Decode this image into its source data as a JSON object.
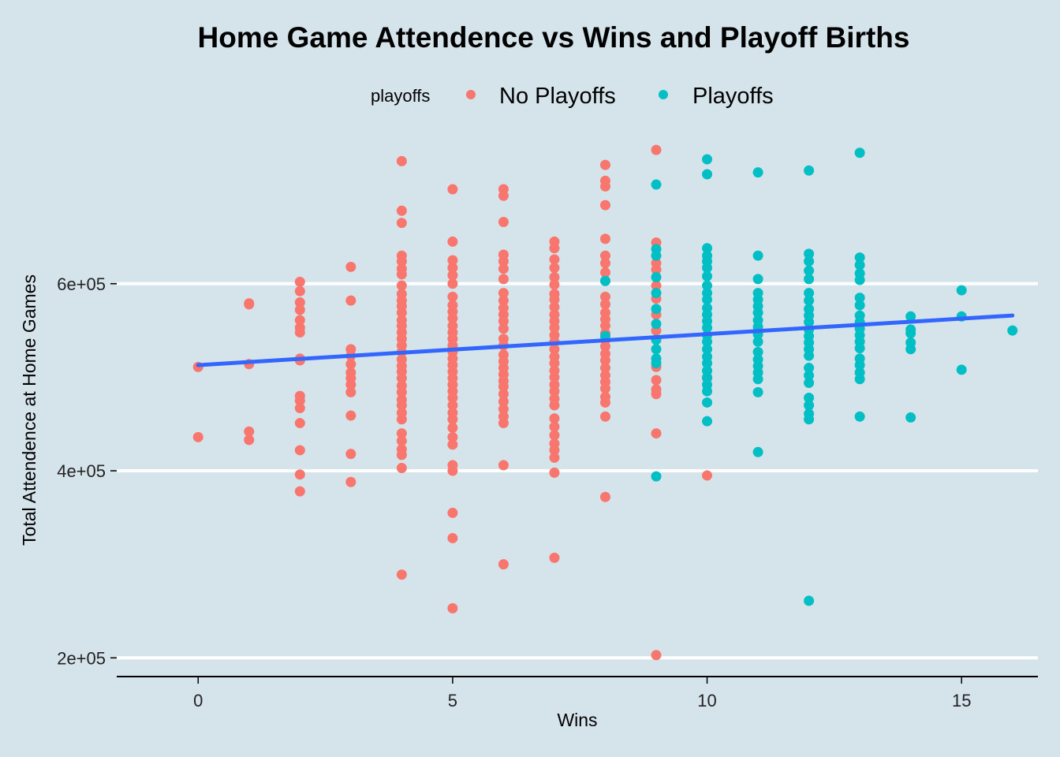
{
  "chart_data": {
    "type": "scatter",
    "title": "Home Game Attendence vs Wins and Playoff Births",
    "xlabel": "Wins",
    "ylabel": "Total Attendence at Home Games",
    "xlim": [
      -1.6,
      16.5
    ],
    "ylim": [
      180000,
      760000
    ],
    "xticks": [
      0,
      5,
      10,
      15
    ],
    "xtick_labels": [
      "0",
      "5",
      "10",
      "15"
    ],
    "yticks": [
      200000,
      400000,
      600000
    ],
    "ytick_labels": [
      "2e+05",
      "4e+05",
      "6e+05"
    ],
    "grid": "horizontal major lines only",
    "legend": {
      "title": "playoffs",
      "position": "top",
      "entries": [
        {
          "label": "No Playoffs",
          "color": "#f8766d"
        },
        {
          "label": "Playoffs",
          "color": "#00bfc4"
        }
      ]
    },
    "trend_line": {
      "color": "#3366ff",
      "x": [
        0,
        16
      ],
      "y": [
        513000,
        566000
      ]
    },
    "series": [
      {
        "name": "No Playoffs",
        "color": "#f8766d",
        "points": [
          [
            0,
            511000
          ],
          [
            0,
            436000
          ],
          [
            1,
            579000
          ],
          [
            1,
            578000
          ],
          [
            1,
            514000
          ],
          [
            1,
            442000
          ],
          [
            1,
            433000
          ],
          [
            2,
            602000
          ],
          [
            2,
            592000
          ],
          [
            2,
            580000
          ],
          [
            2,
            572000
          ],
          [
            2,
            561000
          ],
          [
            2,
            553000
          ],
          [
            2,
            548000
          ],
          [
            2,
            520000
          ],
          [
            2,
            518000
          ],
          [
            2,
            480000
          ],
          [
            2,
            475000
          ],
          [
            2,
            467000
          ],
          [
            2,
            451000
          ],
          [
            2,
            422000
          ],
          [
            2,
            396000
          ],
          [
            2,
            378000
          ],
          [
            3,
            618000
          ],
          [
            3,
            582000
          ],
          [
            3,
            530000
          ],
          [
            3,
            523000
          ],
          [
            3,
            514000
          ],
          [
            3,
            505000
          ],
          [
            3,
            499000
          ],
          [
            3,
            492000
          ],
          [
            3,
            484000
          ],
          [
            3,
            459000
          ],
          [
            3,
            418000
          ],
          [
            3,
            388000
          ],
          [
            4,
            731000
          ],
          [
            4,
            678000
          ],
          [
            4,
            665000
          ],
          [
            4,
            630000
          ],
          [
            4,
            624000
          ],
          [
            4,
            616000
          ],
          [
            4,
            610000
          ],
          [
            4,
            598000
          ],
          [
            4,
            589000
          ],
          [
            4,
            582000
          ],
          [
            4,
            576000
          ],
          [
            4,
            569000
          ],
          [
            4,
            561000
          ],
          [
            4,
            555000
          ],
          [
            4,
            548000
          ],
          [
            4,
            541000
          ],
          [
            4,
            534000
          ],
          [
            4,
            527000
          ],
          [
            4,
            519000
          ],
          [
            4,
            512000
          ],
          [
            4,
            506000
          ],
          [
            4,
            499000
          ],
          [
            4,
            491000
          ],
          [
            4,
            484000
          ],
          [
            4,
            476000
          ],
          [
            4,
            470000
          ],
          [
            4,
            462000
          ],
          [
            4,
            455000
          ],
          [
            4,
            440000
          ],
          [
            4,
            432000
          ],
          [
            4,
            423000
          ],
          [
            4,
            417000
          ],
          [
            4,
            403000
          ],
          [
            4,
            289000
          ],
          [
            5,
            701000
          ],
          [
            5,
            645000
          ],
          [
            5,
            625000
          ],
          [
            5,
            617000
          ],
          [
            5,
            609000
          ],
          [
            5,
            600000
          ],
          [
            5,
            586000
          ],
          [
            5,
            577000
          ],
          [
            5,
            570000
          ],
          [
            5,
            563000
          ],
          [
            5,
            555000
          ],
          [
            5,
            548000
          ],
          [
            5,
            541000
          ],
          [
            5,
            534000
          ],
          [
            5,
            527000
          ],
          [
            5,
            520000
          ],
          [
            5,
            513000
          ],
          [
            5,
            506000
          ],
          [
            5,
            499000
          ],
          [
            5,
            492000
          ],
          [
            5,
            485000
          ],
          [
            5,
            478000
          ],
          [
            5,
            470000
          ],
          [
            5,
            462000
          ],
          [
            5,
            455000
          ],
          [
            5,
            446000
          ],
          [
            5,
            436000
          ],
          [
            5,
            428000
          ],
          [
            5,
            406000
          ],
          [
            5,
            400000
          ],
          [
            5,
            355000
          ],
          [
            5,
            328000
          ],
          [
            5,
            253000
          ],
          [
            6,
            701000
          ],
          [
            6,
            694000
          ],
          [
            6,
            666000
          ],
          [
            6,
            631000
          ],
          [
            6,
            624000
          ],
          [
            6,
            616000
          ],
          [
            6,
            605000
          ],
          [
            6,
            590000
          ],
          [
            6,
            582000
          ],
          [
            6,
            574000
          ],
          [
            6,
            567000
          ],
          [
            6,
            560000
          ],
          [
            6,
            552000
          ],
          [
            6,
            541000
          ],
          [
            6,
            534000
          ],
          [
            6,
            524000
          ],
          [
            6,
            517000
          ],
          [
            6,
            510000
          ],
          [
            6,
            503000
          ],
          [
            6,
            496000
          ],
          [
            6,
            490000
          ],
          [
            6,
            482000
          ],
          [
            6,
            474000
          ],
          [
            6,
            466000
          ],
          [
            6,
            458000
          ],
          [
            6,
            451000
          ],
          [
            6,
            406000
          ],
          [
            6,
            300000
          ],
          [
            7,
            645000
          ],
          [
            7,
            638000
          ],
          [
            7,
            626000
          ],
          [
            7,
            617000
          ],
          [
            7,
            607000
          ],
          [
            7,
            599000
          ],
          [
            7,
            589000
          ],
          [
            7,
            583000
          ],
          [
            7,
            575000
          ],
          [
            7,
            567000
          ],
          [
            7,
            560000
          ],
          [
            7,
            553000
          ],
          [
            7,
            545000
          ],
          [
            7,
            538000
          ],
          [
            7,
            530000
          ],
          [
            7,
            522000
          ],
          [
            7,
            515000
          ],
          [
            7,
            507000
          ],
          [
            7,
            500000
          ],
          [
            7,
            492000
          ],
          [
            7,
            485000
          ],
          [
            7,
            477000
          ],
          [
            7,
            470000
          ],
          [
            7,
            456000
          ],
          [
            7,
            447000
          ],
          [
            7,
            438000
          ],
          [
            7,
            429000
          ],
          [
            7,
            422000
          ],
          [
            7,
            414000
          ],
          [
            7,
            398000
          ],
          [
            7,
            307000
          ],
          [
            8,
            727000
          ],
          [
            8,
            710000
          ],
          [
            8,
            704000
          ],
          [
            8,
            684000
          ],
          [
            8,
            648000
          ],
          [
            8,
            630000
          ],
          [
            8,
            622000
          ],
          [
            8,
            612000
          ],
          [
            8,
            603000
          ],
          [
            8,
            586000
          ],
          [
            8,
            578000
          ],
          [
            8,
            569000
          ],
          [
            8,
            562000
          ],
          [
            8,
            555000
          ],
          [
            8,
            547000
          ],
          [
            8,
            540000
          ],
          [
            8,
            533000
          ],
          [
            8,
            525000
          ],
          [
            8,
            518000
          ],
          [
            8,
            510000
          ],
          [
            8,
            502000
          ],
          [
            8,
            495000
          ],
          [
            8,
            488000
          ],
          [
            8,
            479000
          ],
          [
            8,
            473000
          ],
          [
            8,
            458000
          ],
          [
            8,
            372000
          ],
          [
            9,
            743000
          ],
          [
            9,
            644000
          ],
          [
            9,
            622000
          ],
          [
            9,
            615000
          ],
          [
            9,
            598000
          ],
          [
            9,
            584000
          ],
          [
            9,
            567000
          ],
          [
            9,
            550000
          ],
          [
            9,
            511000
          ],
          [
            9,
            497000
          ],
          [
            9,
            487000
          ],
          [
            9,
            482000
          ],
          [
            9,
            440000
          ],
          [
            9,
            203000
          ],
          [
            10,
            499000
          ],
          [
            10,
            395000
          ]
        ]
      },
      {
        "name": "Playoffs",
        "color": "#00bfc4",
        "points": [
          [
            8,
            603000
          ],
          [
            8,
            544000
          ],
          [
            9,
            706000
          ],
          [
            9,
            637000
          ],
          [
            9,
            630000
          ],
          [
            9,
            607000
          ],
          [
            9,
            590000
          ],
          [
            9,
            573000
          ],
          [
            9,
            557000
          ],
          [
            9,
            540000
          ],
          [
            9,
            530000
          ],
          [
            9,
            520000
          ],
          [
            9,
            515000
          ],
          [
            9,
            394000
          ],
          [
            10,
            733000
          ],
          [
            10,
            717000
          ],
          [
            10,
            638000
          ],
          [
            10,
            630000
          ],
          [
            10,
            624000
          ],
          [
            10,
            617000
          ],
          [
            10,
            608000
          ],
          [
            10,
            598000
          ],
          [
            10,
            590000
          ],
          [
            10,
            583000
          ],
          [
            10,
            574000
          ],
          [
            10,
            567000
          ],
          [
            10,
            560000
          ],
          [
            10,
            553000
          ],
          [
            10,
            545000
          ],
          [
            10,
            538000
          ],
          [
            10,
            530000
          ],
          [
            10,
            522000
          ],
          [
            10,
            515000
          ],
          [
            10,
            507000
          ],
          [
            10,
            500000
          ],
          [
            10,
            492000
          ],
          [
            10,
            485000
          ],
          [
            10,
            473000
          ],
          [
            10,
            453000
          ],
          [
            11,
            719000
          ],
          [
            11,
            630000
          ],
          [
            11,
            605000
          ],
          [
            11,
            590000
          ],
          [
            11,
            583000
          ],
          [
            11,
            576000
          ],
          [
            11,
            569000
          ],
          [
            11,
            561000
          ],
          [
            11,
            554000
          ],
          [
            11,
            546000
          ],
          [
            11,
            538000
          ],
          [
            11,
            527000
          ],
          [
            11,
            519000
          ],
          [
            11,
            512000
          ],
          [
            11,
            505000
          ],
          [
            11,
            498000
          ],
          [
            11,
            484000
          ],
          [
            11,
            420000
          ],
          [
            12,
            721000
          ],
          [
            12,
            632000
          ],
          [
            12,
            624000
          ],
          [
            12,
            614000
          ],
          [
            12,
            605000
          ],
          [
            12,
            590000
          ],
          [
            12,
            582000
          ],
          [
            12,
            573000
          ],
          [
            12,
            566000
          ],
          [
            12,
            559000
          ],
          [
            12,
            551000
          ],
          [
            12,
            544000
          ],
          [
            12,
            537000
          ],
          [
            12,
            530000
          ],
          [
            12,
            523000
          ],
          [
            12,
            510000
          ],
          [
            12,
            502000
          ],
          [
            12,
            494000
          ],
          [
            12,
            478000
          ],
          [
            12,
            470000
          ],
          [
            12,
            461000
          ],
          [
            12,
            455000
          ],
          [
            12,
            261000
          ],
          [
            13,
            740000
          ],
          [
            13,
            628000
          ],
          [
            13,
            620000
          ],
          [
            13,
            611000
          ],
          [
            13,
            604000
          ],
          [
            13,
            585000
          ],
          [
            13,
            577000
          ],
          [
            13,
            566000
          ],
          [
            13,
            559000
          ],
          [
            13,
            552000
          ],
          [
            13,
            545000
          ],
          [
            13,
            538000
          ],
          [
            13,
            531000
          ],
          [
            13,
            520000
          ],
          [
            13,
            513000
          ],
          [
            13,
            505000
          ],
          [
            13,
            498000
          ],
          [
            13,
            458000
          ],
          [
            14,
            565000
          ],
          [
            14,
            551000
          ],
          [
            14,
            547000
          ],
          [
            14,
            537000
          ],
          [
            14,
            530000
          ],
          [
            14,
            457000
          ],
          [
            15,
            593000
          ],
          [
            15,
            565000
          ],
          [
            15,
            508000
          ],
          [
            16,
            550000
          ]
        ]
      }
    ]
  }
}
